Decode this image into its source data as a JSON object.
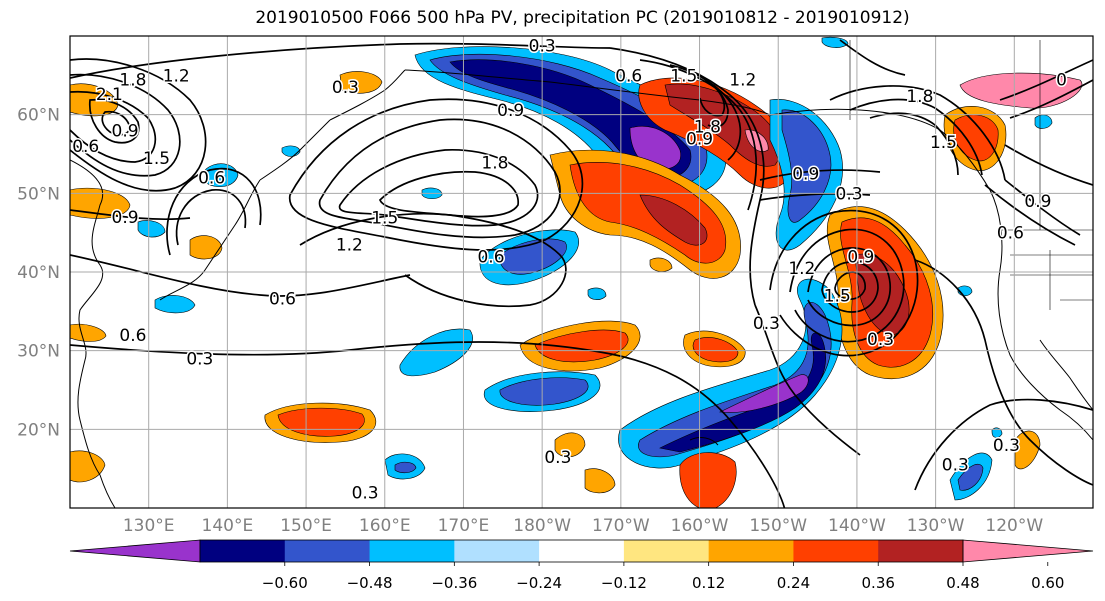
{
  "title": "2019010500 F066 500 hPa PV, precipitation PC (2019010812 - 2019010912)",
  "lat_ticks": [
    {
      "lat": 60,
      "label": "60°N"
    },
    {
      "lat": 50,
      "label": "50°N"
    },
    {
      "lat": 40,
      "label": "40°N"
    },
    {
      "lat": 30,
      "label": "30°N"
    },
    {
      "lat": 20,
      "label": "20°N"
    }
  ],
  "lon_ticks": [
    {
      "lon": 130,
      "label": "130°E"
    },
    {
      "lon": 140,
      "label": "140°E"
    },
    {
      "lon": 150,
      "label": "150°E"
    },
    {
      "lon": 160,
      "label": "160°E"
    },
    {
      "lon": 170,
      "label": "170°E"
    },
    {
      "lon": 180,
      "label": "180°W"
    },
    {
      "lon": 190,
      "label": "170°W"
    },
    {
      "lon": 200,
      "label": "160°W"
    },
    {
      "lon": 210,
      "label": "150°W"
    },
    {
      "lon": 220,
      "label": "140°W"
    },
    {
      "lon": 230,
      "label": "130°W"
    },
    {
      "lon": 240,
      "label": "120°W"
    }
  ],
  "extent": {
    "lon_min": 120,
    "lon_max": 250,
    "lat_min": 10,
    "lat_max": 70
  },
  "colorbar": {
    "colors": [
      "#9933cc",
      "#000080",
      "#3355cc",
      "#00bfff",
      "#b0e0ff",
      "#ffffff",
      "#ffe680",
      "#ffa500",
      "#ff4000",
      "#b22222",
      "#ff88aa"
    ],
    "tick_labels": [
      "−0.60",
      "−0.48",
      "−0.36",
      "−0.24",
      "−0.12",
      "0.12",
      "0.24",
      "0.36",
      "0.48",
      "0.60"
    ]
  },
  "pv_labels": [
    {
      "lon": 180,
      "lat": 68.8,
      "text": "0.3"
    },
    {
      "lon": 128,
      "lat": 64.5,
      "text": "1.8"
    },
    {
      "lon": 133.5,
      "lat": 65,
      "text": "1.2"
    },
    {
      "lon": 125,
      "lat": 62.6,
      "text": "2.1"
    },
    {
      "lon": 127,
      "lat": 58,
      "text": "0.9"
    },
    {
      "lon": 122,
      "lat": 56,
      "text": "0.6"
    },
    {
      "lon": 131,
      "lat": 54.5,
      "text": "1.5"
    },
    {
      "lon": 138,
      "lat": 52,
      "text": "0.6"
    },
    {
      "lon": 127,
      "lat": 47,
      "text": "0.9"
    },
    {
      "lon": 155,
      "lat": 63.5,
      "text": "0.3"
    },
    {
      "lon": 176,
      "lat": 60.6,
      "text": "0.9"
    },
    {
      "lon": 174,
      "lat": 53.9,
      "text": "1.8"
    },
    {
      "lon": 160,
      "lat": 46.9,
      "text": "1.5"
    },
    {
      "lon": 155.5,
      "lat": 43.5,
      "text": "1.2"
    },
    {
      "lon": 173.5,
      "lat": 42,
      "text": "0.6"
    },
    {
      "lon": 147,
      "lat": 36.6,
      "text": "0.6"
    },
    {
      "lon": 128,
      "lat": 32,
      "text": "0.6"
    },
    {
      "lon": 136.5,
      "lat": 29,
      "text": "0.3"
    },
    {
      "lon": 191,
      "lat": 65,
      "text": "0.6"
    },
    {
      "lon": 198,
      "lat": 65,
      "text": "1.5"
    },
    {
      "lon": 205.5,
      "lat": 64.5,
      "text": "1.2"
    },
    {
      "lon": 201,
      "lat": 58.5,
      "text": "1.8"
    },
    {
      "lon": 200,
      "lat": 57,
      "text": "0.9"
    },
    {
      "lon": 213.5,
      "lat": 52.5,
      "text": "0.9"
    },
    {
      "lon": 219,
      "lat": 50,
      "text": "0.3"
    },
    {
      "lon": 213,
      "lat": 40.5,
      "text": "1.2"
    },
    {
      "lon": 220.5,
      "lat": 42,
      "text": "0.9"
    },
    {
      "lon": 217.5,
      "lat": 37,
      "text": "1.5"
    },
    {
      "lon": 208.5,
      "lat": 33.5,
      "text": "0.3"
    },
    {
      "lon": 223,
      "lat": 31.5,
      "text": "0.3"
    },
    {
      "lon": 228,
      "lat": 62.4,
      "text": "1.8"
    },
    {
      "lon": 231,
      "lat": 56.5,
      "text": "1.5"
    },
    {
      "lon": 246,
      "lat": 64.5,
      "text": "0"
    },
    {
      "lon": 243,
      "lat": 49,
      "text": "0.9"
    },
    {
      "lon": 239.5,
      "lat": 45,
      "text": "0.6"
    },
    {
      "lon": 182,
      "lat": 16.5,
      "text": "0.3"
    },
    {
      "lon": 157.5,
      "lat": 12,
      "text": "0.3"
    },
    {
      "lon": 232.5,
      "lat": 15.5,
      "text": "0.3"
    },
    {
      "lon": 239,
      "lat": 18,
      "text": "0.3"
    }
  ]
}
